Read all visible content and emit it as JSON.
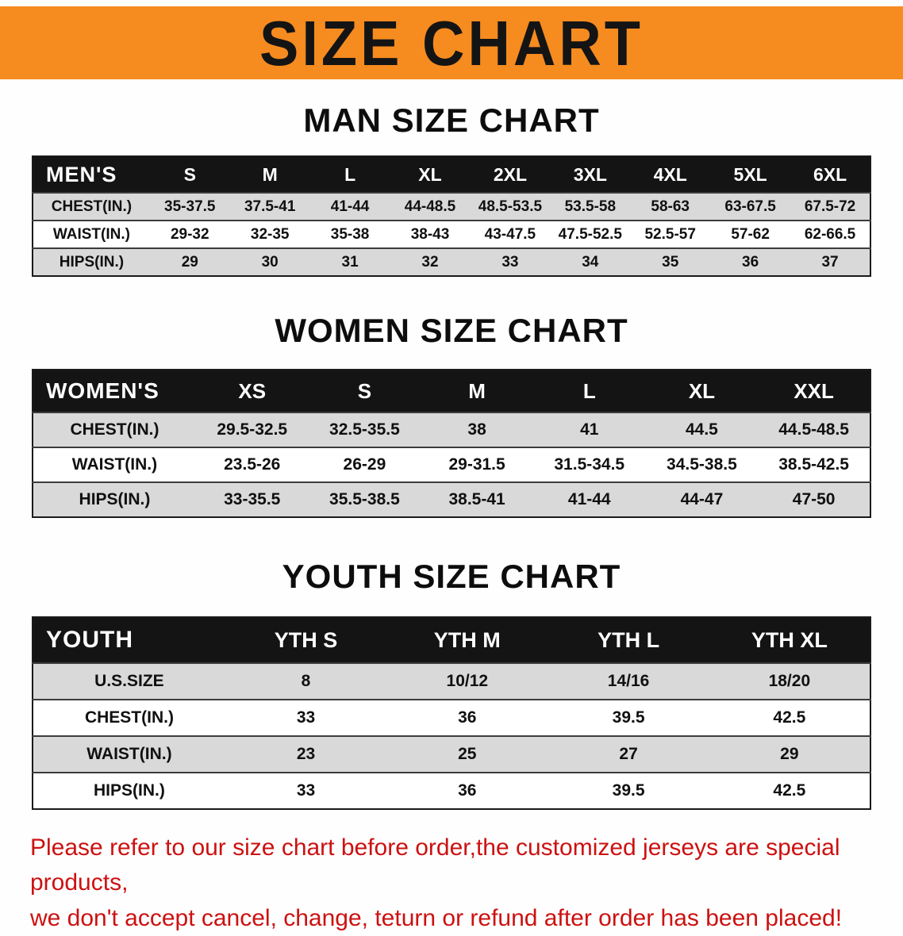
{
  "banner": {
    "title": "SIZE CHART",
    "bg_color": "#f68b1f",
    "text_color": "#141414"
  },
  "sections": [
    {
      "heading": "MAN SIZE CHART",
      "table": {
        "header": [
          "MEN'S",
          "S",
          "M",
          "L",
          "XL",
          "2XL",
          "3XL",
          "4XL",
          "5XL",
          "6XL"
        ],
        "rows": [
          [
            "CHEST(IN.)",
            "35-37.5",
            "37.5-41",
            "41-44",
            "44-48.5",
            "48.5-53.5",
            "53.5-58",
            "58-63",
            "63-67.5",
            "67.5-72"
          ],
          [
            "WAIST(IN.)",
            "29-32",
            "32-35",
            "35-38",
            "38-43",
            "43-47.5",
            "47.5-52.5",
            "52.5-57",
            "57-62",
            "62-66.5"
          ],
          [
            "HIPS(IN.)",
            "29",
            "30",
            "31",
            "32",
            "33",
            "34",
            "35",
            "36",
            "37"
          ]
        ]
      }
    },
    {
      "heading": "WOMEN SIZE CHART",
      "table": {
        "header": [
          "WOMEN'S",
          "XS",
          "S",
          "M",
          "L",
          "XL",
          "XXL"
        ],
        "rows": [
          [
            "CHEST(IN.)",
            "29.5-32.5",
            "32.5-35.5",
            "38",
            "41",
            "44.5",
            "44.5-48.5"
          ],
          [
            "WAIST(IN.)",
            "23.5-26",
            "26-29",
            "29-31.5",
            "31.5-34.5",
            "34.5-38.5",
            "38.5-42.5"
          ],
          [
            "HIPS(IN.)",
            "33-35.5",
            "35.5-38.5",
            "38.5-41",
            "41-44",
            "44-47",
            "47-50"
          ]
        ]
      }
    },
    {
      "heading": "YOUTH SIZE CHART",
      "table": {
        "header": [
          "YOUTH",
          "YTH S",
          "YTH M",
          "YTH L",
          "YTH XL"
        ],
        "rows": [
          [
            "U.S.SIZE",
            "8",
            "10/12",
            "14/16",
            "18/20"
          ],
          [
            "CHEST(IN.)",
            "33",
            "36",
            "39.5",
            "42.5"
          ],
          [
            "WAIST(IN.)",
            "23",
            "25",
            "27",
            "29"
          ],
          [
            "HIPS(IN.)",
            "33",
            "36",
            "39.5",
            "42.5"
          ]
        ]
      }
    }
  ],
  "footer": {
    "line1": "Please refer to our size chart before order,the customized jerseys are special products,",
    "line2": "we don't accept cancel, change, teturn or refund after order has been placed!",
    "text_color": "#cc1111"
  }
}
